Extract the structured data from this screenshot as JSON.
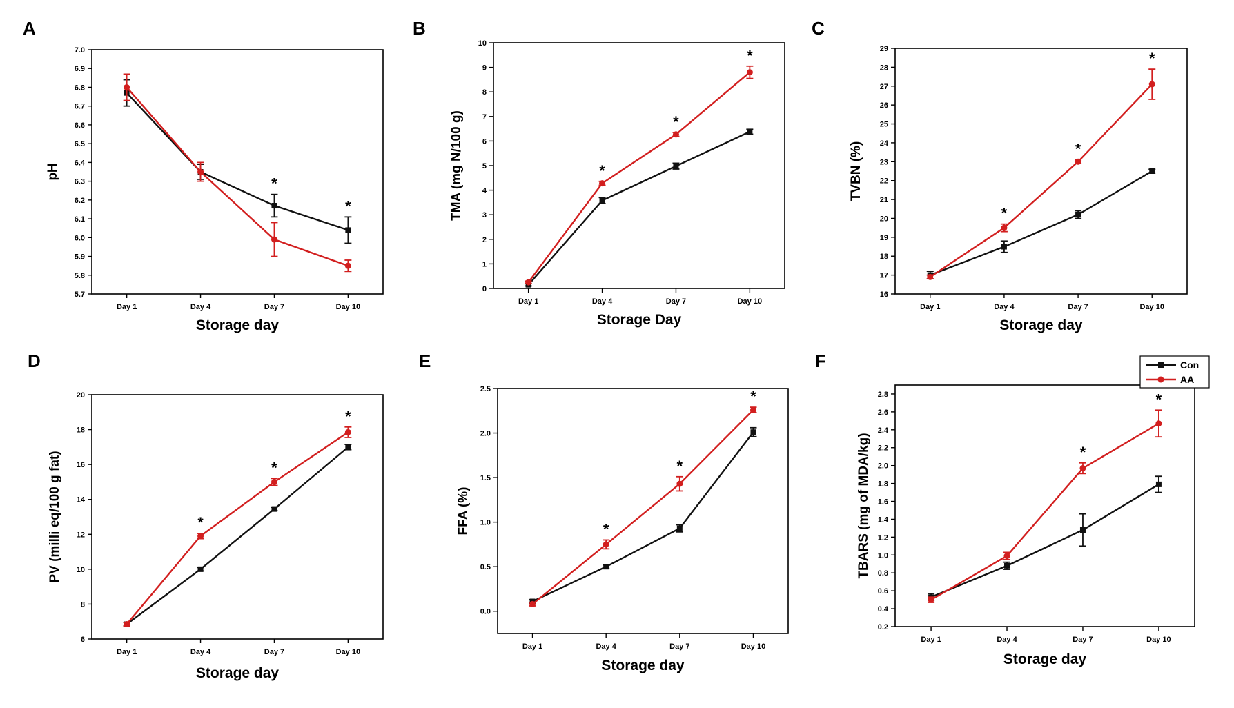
{
  "figure": {
    "colors": {
      "Con": "#111111",
      "AA": "#d21f1f",
      "axis": "#000000"
    },
    "legend": {
      "entries": [
        "Con",
        "AA"
      ],
      "panel": "F",
      "placement": "top-right"
    }
  },
  "chart_data": [
    {
      "panel": "A",
      "type": "line",
      "categories": [
        "Day 1",
        "Day 4",
        "Day 7",
        "Day 10"
      ],
      "xlabel": "Storage day",
      "ylabel": "pH",
      "ylim": [
        5.7,
        7.0
      ],
      "yticks": [
        "5.7",
        "5.8",
        "5.9",
        "6.0",
        "6.1",
        "6.2",
        "6.3",
        "6.4",
        "6.5",
        "6.6",
        "6.7",
        "6.8",
        "6.9",
        "7.0"
      ],
      "series": [
        {
          "name": "Con",
          "values": [
            6.77,
            6.35,
            6.17,
            6.04
          ],
          "errors": [
            0.07,
            0.04,
            0.06,
            0.07
          ]
        },
        {
          "name": "AA",
          "values": [
            6.8,
            6.35,
            5.99,
            5.85
          ],
          "errors": [
            0.07,
            0.05,
            0.09,
            0.03
          ]
        }
      ],
      "significance": [
        "",
        "",
        "*",
        "*"
      ]
    },
    {
      "panel": "B",
      "type": "line",
      "categories": [
        "Day 1",
        "Day 4",
        "Day 7",
        "Day 10"
      ],
      "xlabel": "Storage Day",
      "ylabel": "TMA (mg N/100 g)",
      "ylim": [
        0,
        10
      ],
      "yticks": [
        "0",
        "1",
        "2",
        "3",
        "4",
        "5",
        "6",
        "7",
        "8",
        "9",
        "10"
      ],
      "series": [
        {
          "name": "Con",
          "values": [
            0.15,
            3.58,
            4.98,
            6.38
          ],
          "errors": [
            0.05,
            0.12,
            0.12,
            0.1
          ]
        },
        {
          "name": "AA",
          "values": [
            0.25,
            4.28,
            6.27,
            8.8
          ],
          "errors": [
            0.05,
            0.08,
            0.08,
            0.25
          ]
        }
      ],
      "significance": [
        "",
        "*",
        "*",
        "*"
      ]
    },
    {
      "panel": "C",
      "type": "line",
      "categories": [
        "Day 1",
        "Day 4",
        "Day 7",
        "Day 10"
      ],
      "xlabel": "Storage day",
      "ylabel": "TVBN (%)",
      "ylim": [
        16,
        29
      ],
      "yticks": [
        "16",
        "17",
        "18",
        "19",
        "20",
        "21",
        "22",
        "23",
        "24",
        "25",
        "26",
        "27",
        "28",
        "29"
      ],
      "series": [
        {
          "name": "Con",
          "values": [
            17.0,
            18.5,
            20.2,
            22.5
          ],
          "errors": [
            0.2,
            0.3,
            0.2,
            0.1
          ]
        },
        {
          "name": "AA",
          "values": [
            16.9,
            19.5,
            23.0,
            27.1
          ],
          "errors": [
            0.1,
            0.2,
            0.1,
            0.8
          ]
        }
      ],
      "significance": [
        "",
        "*",
        "*",
        "*"
      ]
    },
    {
      "panel": "D",
      "type": "line",
      "categories": [
        "Day 1",
        "Day 4",
        "Day 7",
        "Day 10"
      ],
      "xlabel": "Storage day",
      "ylabel": "PV (milli eq/100 g fat)",
      "ylim": [
        6,
        20
      ],
      "yticks": [
        "6",
        "8",
        "10",
        "12",
        "14",
        "16",
        "18",
        "20"
      ],
      "series": [
        {
          "name": "Con",
          "values": [
            6.85,
            10.0,
            13.45,
            17.0
          ],
          "errors": [
            0.1,
            0.1,
            0.1,
            0.15
          ]
        },
        {
          "name": "AA",
          "values": [
            6.85,
            11.9,
            15.0,
            17.85
          ],
          "errors": [
            0.1,
            0.15,
            0.2,
            0.3
          ]
        }
      ],
      "significance": [
        "",
        "*",
        "*",
        "*"
      ]
    },
    {
      "panel": "E",
      "type": "line",
      "categories": [
        "Day 1",
        "Day 4",
        "Day 7",
        "Day 10"
      ],
      "xlabel": "Storage day",
      "ylabel": "FFA (%)",
      "ylim": [
        -0.25,
        2.5
      ],
      "yticks": [
        "0.0",
        "0.5",
        "1.0",
        "1.5",
        "2.0",
        "2.5"
      ],
      "series": [
        {
          "name": "Con",
          "values": [
            0.11,
            0.5,
            0.93,
            2.01
          ],
          "errors": [
            0.02,
            0.02,
            0.04,
            0.05
          ]
        },
        {
          "name": "AA",
          "values": [
            0.08,
            0.75,
            1.43,
            2.26
          ],
          "errors": [
            0.02,
            0.05,
            0.08,
            0.03
          ]
        }
      ],
      "significance": [
        "",
        "*",
        "*",
        "*"
      ]
    },
    {
      "panel": "F",
      "type": "line",
      "categories": [
        "Day 1",
        "Day 4",
        "Day 7",
        "Day 10"
      ],
      "xlabel": "Storage day",
      "ylabel": "TBARS (mg of MDA/kg)",
      "ylim": [
        0.2,
        2.9
      ],
      "yticks": [
        "0.2",
        "0.4",
        "0.6",
        "0.8",
        "1.0",
        "1.2",
        "1.4",
        "1.6",
        "1.8",
        "2.0",
        "2.2",
        "2.4",
        "2.6",
        "2.8"
      ],
      "series": [
        {
          "name": "Con",
          "values": [
            0.53,
            0.88,
            1.28,
            1.79
          ],
          "errors": [
            0.04,
            0.04,
            0.18,
            0.09
          ]
        },
        {
          "name": "AA",
          "values": [
            0.5,
            0.99,
            1.97,
            2.47
          ],
          "errors": [
            0.03,
            0.04,
            0.06,
            0.15
          ]
        }
      ],
      "significance": [
        "",
        "",
        "*",
        "*"
      ]
    }
  ]
}
